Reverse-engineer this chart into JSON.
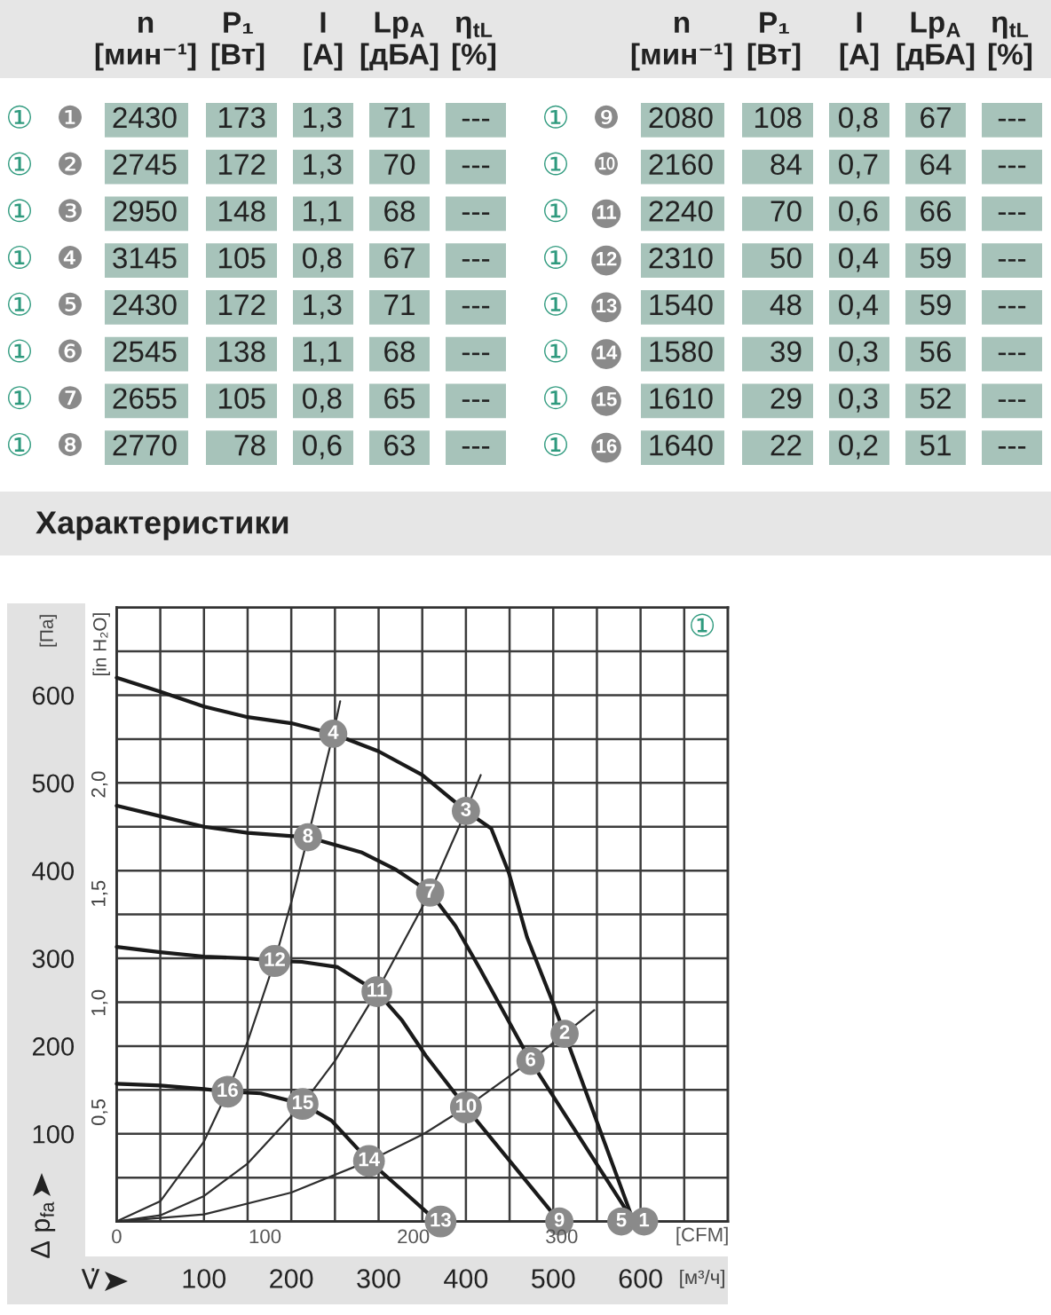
{
  "chart_data": [
    {
      "type": "other",
      "annotations": [
        "n\n[мин⁻¹]",
        "P₁\n[Вт]",
        "I\n[A]",
        "Lp$_{A}$\n[дБА]",
        "η$_{tL}$\n[%]",
        "n\n[мин⁻¹]",
        "P₁\n[Вт]",
        "I\n[A]",
        "Lp$_{A}$\n[дБА]",
        "η$_{tL}$\n[%]",
        "①",
        "❶",
        "2430",
        "173",
        "1,3",
        "71",
        "---",
        "①",
        "❾",
        "2080",
        "108",
        "0,8",
        "67",
        "---",
        "①",
        "❷",
        "2745",
        "172",
        "1,3",
        "70",
        "---",
        "①",
        "❿",
        "2160",
        "84",
        "0,7",
        "64",
        "---",
        "①",
        "❸",
        "2950",
        "148",
        "1,1",
        "68",
        "---",
        "①",
        "11",
        "2240",
        "70",
        "0,6",
        "66",
        "---",
        "①",
        "❹",
        "3145",
        "105",
        "0,8",
        "67",
        "---",
        "①",
        "12",
        "2310",
        "50",
        "0,4",
        "59",
        "---",
        "①",
        "❺",
        "2430",
        "172",
        "1,3",
        "71",
        "---",
        "①",
        "13",
        "1540",
        "48",
        "0,4",
        "59",
        "---",
        "①",
        "❻",
        "2545",
        "138",
        "1,1",
        "68",
        "---",
        "①",
        "14",
        "1580",
        "39",
        "0,3",
        "56",
        "---",
        "①",
        "❼",
        "2655",
        "105",
        "0,8",
        "65",
        "---",
        "①",
        "15",
        "1610",
        "29",
        "0,3",
        "52",
        "---",
        "①",
        "❽",
        "2770",
        "78",
        "0,6",
        "63",
        "---",
        "①",
        "16",
        "1640",
        "22",
        "0,2",
        "51",
        "---"
      ]
    },
    {
      "type": "line",
      "title": "Характеристики",
      "xlabel": "[м³/ч]",
      "x2label": "[CFM]",
      "ylabel": "[Па]",
      "y2label": "[in H₂O]",
      "xlim": [
        0,
        700
      ],
      "xticks": [
        {
          "value": 0,
          "label": null
        },
        {
          "value": 50,
          "label": null
        },
        100,
        {
          "value": 150,
          "label": null
        },
        200,
        {
          "value": 250,
          "label": null
        },
        300,
        {
          "value": 350,
          "label": null
        },
        400,
        {
          "value": 450,
          "label": null
        },
        500,
        {
          "value": 550,
          "label": null
        },
        600,
        {
          "value": 650,
          "label": null
        },
        {
          "value": 700,
          "label": null
        }
      ],
      "ylim": [
        0,
        700
      ],
      "yticks": [
        {
          "value": 0,
          "label": null
        },
        {
          "value": 50,
          "label": null
        },
        100,
        {
          "value": 150,
          "label": null
        },
        200,
        {
          "value": 250,
          "label": null
        },
        300,
        {
          "value": 350,
          "label": null
        },
        400,
        {
          "value": 450,
          "label": null
        },
        500,
        {
          "value": 550,
          "label": null
        },
        600,
        {
          "value": 650,
          "label": null
        },
        {
          "value": 700,
          "label": null
        }
      ],
      "x2lim": [
        0,
        412
      ],
      "x2ticks": [
        0,
        100,
        200,
        300
      ],
      "y2lim": [
        0,
        2.81
      ],
      "y2ticks": [
        {
          "value": 0.5,
          "label": "0,5"
        },
        {
          "value": 1,
          "label": "1,0"
        },
        {
          "value": 1.5,
          "label": "1,5"
        },
        {
          "value": 2,
          "label": "2,0"
        }
      ],
      "grid": true,
      "series": [
        {
          "color": "#1a1a1a",
          "x": [
            0,
            50,
            100,
            150,
            200,
            248,
            300,
            350,
            400,
            429,
            449,
            470,
            497,
            513,
            592
          ],
          "values": [
            620,
            604,
            587,
            575,
            568,
            556,
            536,
            509,
            468,
            448,
            398,
            324,
            256,
            214,
            0
          ]
        },
        {
          "color": "#1a1a1a",
          "x": [
            0,
            50,
            100,
            150,
            219,
            280,
            320,
            359,
            388,
            415,
            474,
            592
          ],
          "values": [
            474,
            462,
            450,
            443,
            438,
            421,
            401,
            375,
            337,
            290,
            183,
            0
          ]
        },
        {
          "color": "#1a1a1a",
          "x": [
            0,
            50,
            100,
            150,
            181,
            212,
            253,
            298,
            327,
            354,
            400,
            507
          ],
          "values": [
            313,
            307,
            302,
            300,
            297,
            296,
            290,
            262,
            229,
            189,
            130,
            0
          ]
        },
        {
          "color": "#1a1a1a",
          "x": [
            0,
            50,
            100,
            127,
            165,
            213,
            246,
            289,
            330,
            367
          ],
          "values": [
            157,
            155,
            151,
            148,
            146,
            134,
            115,
            69,
            33,
            0
          ]
        },
        {
          "color": "#2e2e2e",
          "x": [
            0,
            50,
            100,
            127,
            150,
            181,
            200,
            219,
            248,
            256
          ],
          "values": [
            0,
            23,
            91,
            148,
            205,
            297,
            364,
            438,
            556,
            593
          ]
        },
        {
          "color": "#2e2e2e",
          "x": [
            0,
            50,
            100,
            150,
            213,
            250,
            298,
            359,
            400,
            417
          ],
          "values": [
            0,
            7,
            29,
            66,
            134,
            183,
            262,
            375,
            468,
            509
          ]
        },
        {
          "color": "#2e2e2e",
          "x": [
            0,
            100,
            200,
            289,
            352,
            400,
            474,
            513,
            547
          ],
          "values": [
            0,
            8,
            33,
            69,
            100,
            130,
            183,
            214,
            241
          ]
        }
      ],
      "annotations": [
        "①",
        {
          "text": "4",
          "x": 248,
          "y": 556
        },
        {
          "text": "3",
          "x": 400,
          "y": 468
        },
        {
          "text": "8",
          "x": 219,
          "y": 438
        },
        {
          "text": "7",
          "x": 359,
          "y": 375
        },
        {
          "text": "12",
          "x": 181,
          "y": 297
        },
        {
          "text": "11",
          "x": 298,
          "y": 262
        },
        {
          "text": "2",
          "x": 513,
          "y": 214
        },
        {
          "text": "6",
          "x": 474,
          "y": 183
        },
        {
          "text": "16",
          "x": 127,
          "y": 148
        },
        {
          "text": "15",
          "x": 213,
          "y": 134
        },
        {
          "text": "10",
          "x": 400,
          "y": 130
        },
        {
          "text": "14",
          "x": 289,
          "y": 69
        },
        {
          "text": "13",
          "x": 371,
          "y": 0
        },
        {
          "text": "9",
          "x": 507,
          "y": 0
        },
        {
          "text": "5",
          "x": 578,
          "y": 0
        },
        {
          "text": "1",
          "x": 604,
          "y": 0
        },
        "Δ p$_{fa}$",
        "V̇"
      ]
    }
  ]
}
